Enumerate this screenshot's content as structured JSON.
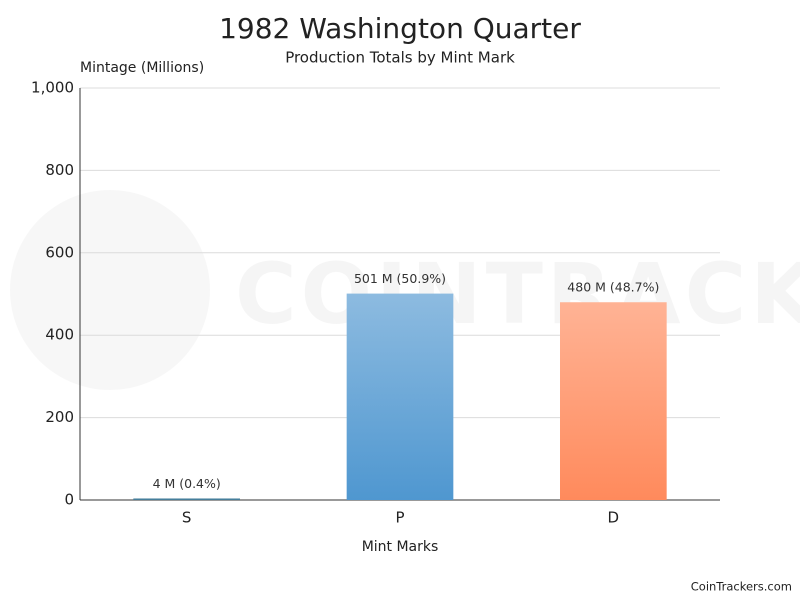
{
  "chart_data": {
    "type": "bar",
    "title": "1982 Washington Quarter",
    "subtitle": "Production Totals by Mint Mark",
    "y_label": "Mintage (Millions)",
    "x_label": "Mint Marks",
    "credit": "CoinTrackers.com",
    "watermark": "COINTRACKERS",
    "categories": [
      "S",
      "P",
      "D"
    ],
    "values": [
      4,
      501,
      480
    ],
    "value_labels": [
      "4 M (0.4%)",
      "501 M (50.9%)",
      "480 M (48.7%)"
    ],
    "colors": [
      "#2f6f8f",
      "#4f97d0",
      "#ff8a5c"
    ],
    "ylim": [
      0,
      1000
    ],
    "yticks": [
      0,
      200,
      400,
      600,
      800,
      {
        "value": 1000,
        "label": "1,000"
      }
    ],
    "grid": true
  }
}
